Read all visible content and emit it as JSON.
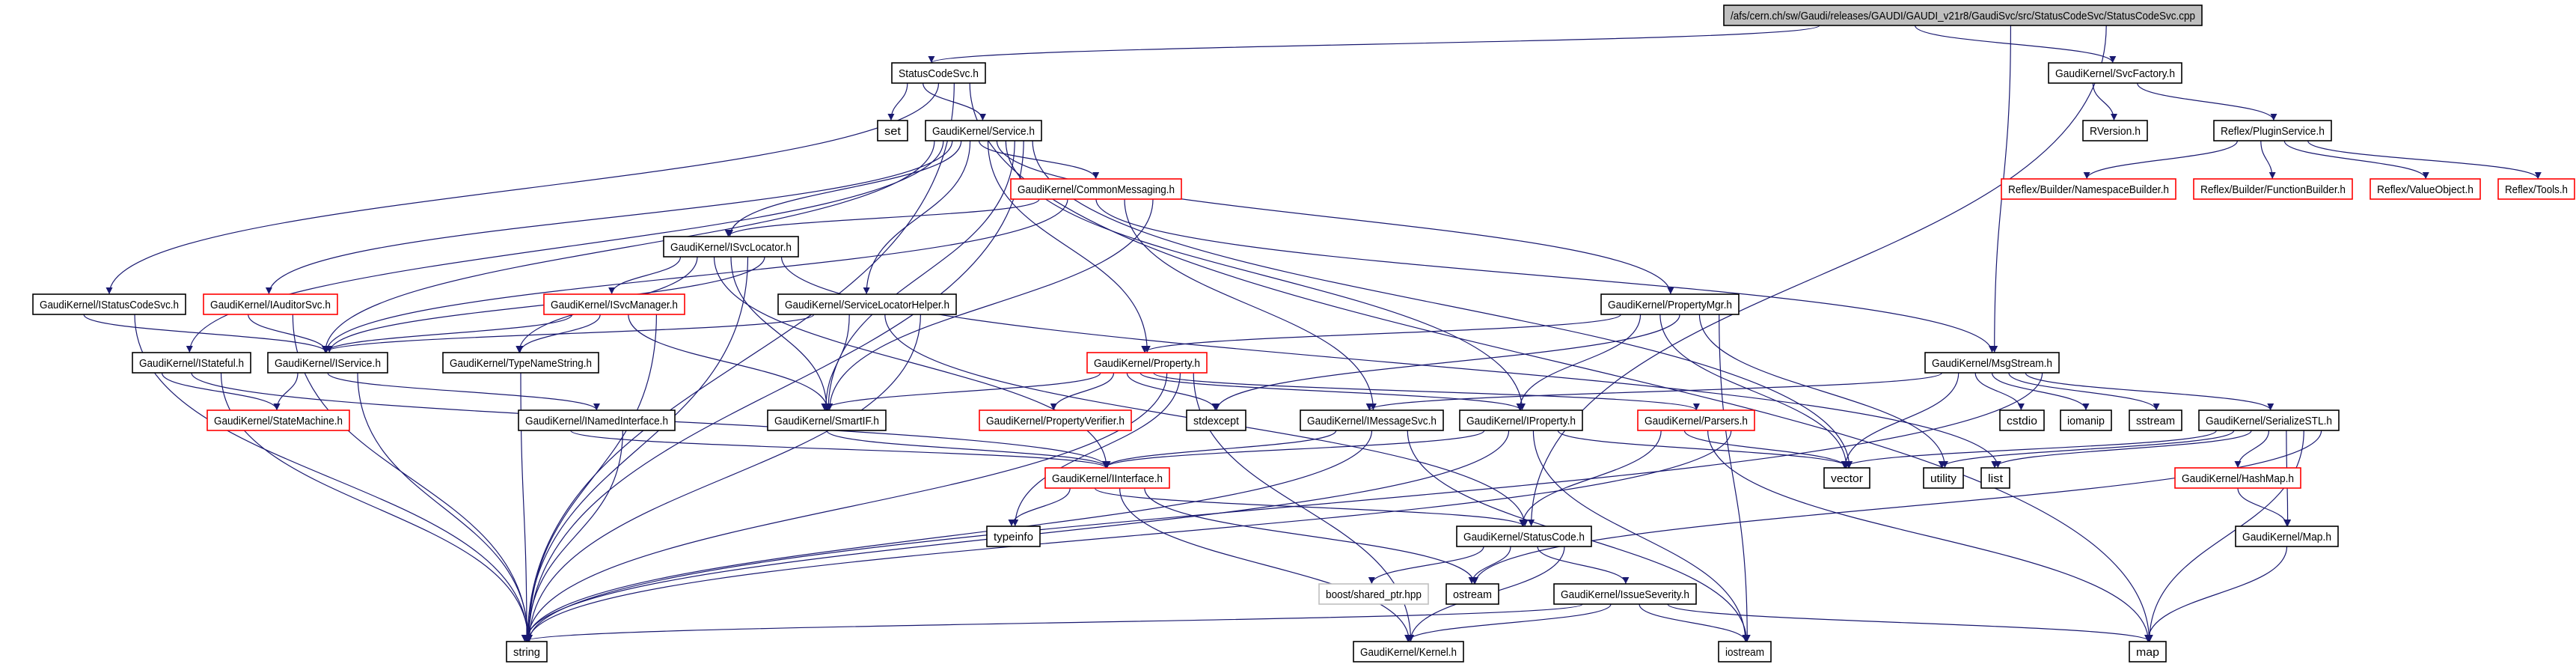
{
  "colors": {
    "edge": "#191970",
    "border": "#000000",
    "missing_border": "#ff0000",
    "external_border": "#bfbfbf",
    "root_fill": "#bfbfbf",
    "background": "#ffffff"
  },
  "nodes": [
    {
      "id": "root",
      "label": "/afs/cern.ch/sw/Gaudi/releases/GAUDI/GAUDI_v21r8/GaudiSvc/src/StatusCodeSvc/StatusCodeSvc.cpp",
      "style": "root"
    },
    {
      "id": "StatusCodeSvc",
      "label": "StatusCodeSvc.h",
      "style": "normal"
    },
    {
      "id": "SvcFactory",
      "label": "GaudiKernel/SvcFactory.h",
      "style": "normal"
    },
    {
      "id": "set",
      "label": "set",
      "style": "normal"
    },
    {
      "id": "Service",
      "label": "GaudiKernel/Service.h",
      "style": "normal"
    },
    {
      "id": "RVersion",
      "label": "RVersion.h",
      "style": "normal"
    },
    {
      "id": "PluginService",
      "label": "Reflex/PluginService.h",
      "style": "normal"
    },
    {
      "id": "CommonMessaging",
      "label": "GaudiKernel/CommonMessaging.h",
      "style": "missing"
    },
    {
      "id": "NamespaceBuilder",
      "label": "Reflex/Builder/NamespaceBuilder.h",
      "style": "missing"
    },
    {
      "id": "FunctionBuilder",
      "label": "Reflex/Builder/FunctionBuilder.h",
      "style": "missing"
    },
    {
      "id": "ValueObject",
      "label": "Reflex/ValueObject.h",
      "style": "missing"
    },
    {
      "id": "Tools",
      "label": "Reflex/Tools.h",
      "style": "missing"
    },
    {
      "id": "ISvcLocator",
      "label": "GaudiKernel/ISvcLocator.h",
      "style": "normal"
    },
    {
      "id": "IStatusCodeSvc",
      "label": "GaudiKernel/IStatusCodeSvc.h",
      "style": "normal"
    },
    {
      "id": "IAuditorSvc",
      "label": "GaudiKernel/IAuditorSvc.h",
      "style": "missing"
    },
    {
      "id": "ISvcManager",
      "label": "GaudiKernel/ISvcManager.h",
      "style": "missing"
    },
    {
      "id": "ServiceLocatorHelper",
      "label": "GaudiKernel/ServiceLocatorHelper.h",
      "style": "normal"
    },
    {
      "id": "PropertyMgr",
      "label": "GaudiKernel/PropertyMgr.h",
      "style": "normal"
    },
    {
      "id": "IStateful",
      "label": "GaudiKernel/IStateful.h",
      "style": "normal"
    },
    {
      "id": "IService",
      "label": "GaudiKernel/IService.h",
      "style": "normal"
    },
    {
      "id": "TypeNameString",
      "label": "GaudiKernel/TypeNameString.h",
      "style": "normal"
    },
    {
      "id": "Property",
      "label": "GaudiKernel/Property.h",
      "style": "missing"
    },
    {
      "id": "MsgStream",
      "label": "GaudiKernel/MsgStream.h",
      "style": "normal"
    },
    {
      "id": "StateMachine",
      "label": "GaudiKernel/StateMachine.h",
      "style": "missing"
    },
    {
      "id": "INamedInterface",
      "label": "GaudiKernel/INamedInterface.h",
      "style": "normal"
    },
    {
      "id": "SmartIF",
      "label": "GaudiKernel/SmartIF.h",
      "style": "normal"
    },
    {
      "id": "PropertyVerifier",
      "label": "GaudiKernel/PropertyVerifier.h",
      "style": "missing"
    },
    {
      "id": "stdexcept",
      "label": "stdexcept",
      "style": "normal"
    },
    {
      "id": "IMessageSvc",
      "label": "GaudiKernel/IMessageSvc.h",
      "style": "normal"
    },
    {
      "id": "IProperty",
      "label": "GaudiKernel/IProperty.h",
      "style": "normal"
    },
    {
      "id": "Parsers",
      "label": "GaudiKernel/Parsers.h",
      "style": "missing"
    },
    {
      "id": "cstdio",
      "label": "cstdio",
      "style": "normal"
    },
    {
      "id": "iomanip",
      "label": "iomanip",
      "style": "normal"
    },
    {
      "id": "sstream",
      "label": "sstream",
      "style": "normal"
    },
    {
      "id": "SerializeSTL",
      "label": "GaudiKernel/SerializeSTL.h",
      "style": "normal"
    },
    {
      "id": "IInterface",
      "label": "GaudiKernel/IInterface.h",
      "style": "missing"
    },
    {
      "id": "vector",
      "label": "vector",
      "style": "normal"
    },
    {
      "id": "utility",
      "label": "utility",
      "style": "normal"
    },
    {
      "id": "list",
      "label": "list",
      "style": "normal"
    },
    {
      "id": "HashMap",
      "label": "GaudiKernel/HashMap.h",
      "style": "missing"
    },
    {
      "id": "typeinfo",
      "label": "typeinfo",
      "style": "normal"
    },
    {
      "id": "StatusCode",
      "label": "GaudiKernel/StatusCode.h",
      "style": "normal"
    },
    {
      "id": "Map",
      "label": "GaudiKernel/Map.h",
      "style": "normal"
    },
    {
      "id": "boost",
      "label": "boost/shared_ptr.hpp",
      "style": "external"
    },
    {
      "id": "ostream",
      "label": "ostream",
      "style": "normal"
    },
    {
      "id": "IssueSeverity",
      "label": "GaudiKernel/IssueSeverity.h",
      "style": "normal"
    },
    {
      "id": "string",
      "label": "string",
      "style": "normal"
    },
    {
      "id": "Kernel",
      "label": "GaudiKernel/Kernel.h",
      "style": "normal"
    },
    {
      "id": "iostream",
      "label": "iostream",
      "style": "normal"
    },
    {
      "id": "map",
      "label": "map",
      "style": "normal"
    }
  ],
  "edges": [
    [
      "root",
      "StatusCodeSvc"
    ],
    [
      "root",
      "SvcFactory"
    ],
    [
      "root",
      "MsgStream"
    ],
    [
      "root",
      "StatusCode"
    ],
    [
      "StatusCodeSvc",
      "set"
    ],
    [
      "StatusCodeSvc",
      "Service"
    ],
    [
      "StatusCodeSvc",
      "IStatusCodeSvc"
    ],
    [
      "StatusCodeSvc",
      "string"
    ],
    [
      "StatusCodeSvc",
      "map"
    ],
    [
      "SvcFactory",
      "RVersion"
    ],
    [
      "SvcFactory",
      "PluginService"
    ],
    [
      "PluginService",
      "NamespaceBuilder"
    ],
    [
      "PluginService",
      "FunctionBuilder"
    ],
    [
      "PluginService",
      "ValueObject"
    ],
    [
      "PluginService",
      "Tools"
    ],
    [
      "Service",
      "IService"
    ],
    [
      "Service",
      "IStateful"
    ],
    [
      "Service",
      "IAuditorSvc"
    ],
    [
      "Service",
      "ISvcLocator"
    ],
    [
      "Service",
      "ServiceLocatorHelper"
    ],
    [
      "Service",
      "CommonMessaging"
    ],
    [
      "Service",
      "Property"
    ],
    [
      "Service",
      "PropertyMgr"
    ],
    [
      "Service",
      "IProperty"
    ],
    [
      "Service",
      "SmartIF"
    ],
    [
      "Service",
      "string"
    ],
    [
      "Service",
      "vector"
    ],
    [
      "CommonMessaging",
      "ISvcLocator"
    ],
    [
      "CommonMessaging",
      "IService"
    ],
    [
      "CommonMessaging",
      "MsgStream"
    ],
    [
      "CommonMessaging",
      "IMessageSvc"
    ],
    [
      "CommonMessaging",
      "SmartIF"
    ],
    [
      "ISvcLocator",
      "ISvcManager"
    ],
    [
      "ISvcLocator",
      "TypeNameString"
    ],
    [
      "ISvcLocator",
      "IInterface"
    ],
    [
      "ISvcLocator",
      "SmartIF"
    ],
    [
      "ISvcLocator",
      "string"
    ],
    [
      "ISvcLocator",
      "IService"
    ],
    [
      "ISvcLocator",
      "list"
    ],
    [
      "IStatusCodeSvc",
      "IService"
    ],
    [
      "IStatusCodeSvc",
      "string"
    ],
    [
      "IAuditorSvc",
      "IService"
    ],
    [
      "IAuditorSvc",
      "string"
    ],
    [
      "ISvcManager",
      "IService"
    ],
    [
      "ISvcManager",
      "TypeNameString"
    ],
    [
      "ISvcManager",
      "SmartIF"
    ],
    [
      "ISvcManager",
      "string"
    ],
    [
      "ServiceLocatorHelper",
      "IService"
    ],
    [
      "ServiceLocatorHelper",
      "SmartIF"
    ],
    [
      "ServiceLocatorHelper",
      "StatusCode"
    ],
    [
      "ServiceLocatorHelper",
      "string"
    ],
    [
      "PropertyMgr",
      "Property"
    ],
    [
      "PropertyMgr",
      "IProperty"
    ],
    [
      "PropertyMgr",
      "vector"
    ],
    [
      "PropertyMgr",
      "stdexcept"
    ],
    [
      "PropertyMgr",
      "utility"
    ],
    [
      "PropertyMgr",
      "iostream"
    ],
    [
      "IStateful",
      "StateMachine"
    ],
    [
      "IStateful",
      "IInterface"
    ],
    [
      "IStateful",
      "string"
    ],
    [
      "IService",
      "StateMachine"
    ],
    [
      "IService",
      "INamedInterface"
    ],
    [
      "IService",
      "string"
    ],
    [
      "TypeNameString",
      "string"
    ],
    [
      "Property",
      "SmartIF"
    ],
    [
      "Property",
      "PropertyVerifier"
    ],
    [
      "Property",
      "stdexcept"
    ],
    [
      "Property",
      "IProperty"
    ],
    [
      "Property",
      "Parsers"
    ],
    [
      "Property",
      "string"
    ],
    [
      "Property",
      "typeinfo"
    ],
    [
      "Property",
      "Kernel"
    ],
    [
      "MsgStream",
      "IMessageSvc"
    ],
    [
      "MsgStream",
      "vector"
    ],
    [
      "MsgStream",
      "cstdio"
    ],
    [
      "MsgStream",
      "iomanip"
    ],
    [
      "MsgStream",
      "sstream"
    ],
    [
      "MsgStream",
      "SerializeSTL"
    ],
    [
      "MsgStream",
      "string"
    ],
    [
      "INamedInterface",
      "IInterface"
    ],
    [
      "INamedInterface",
      "string"
    ],
    [
      "SmartIF",
      "IInterface"
    ],
    [
      "IMessageSvc",
      "IInterface"
    ],
    [
      "IMessageSvc",
      "string"
    ],
    [
      "IMessageSvc",
      "iostream"
    ],
    [
      "IProperty",
      "IInterface"
    ],
    [
      "IProperty",
      "string"
    ],
    [
      "IProperty",
      "iostream"
    ],
    [
      "IProperty",
      "vector"
    ],
    [
      "Parsers",
      "StatusCode"
    ],
    [
      "Parsers",
      "vector"
    ],
    [
      "Parsers",
      "map"
    ],
    [
      "Parsers",
      "string"
    ],
    [
      "SerializeSTL",
      "vector"
    ],
    [
      "SerializeSTL",
      "utility"
    ],
    [
      "SerializeSTL",
      "list"
    ],
    [
      "SerializeSTL",
      "HashMap"
    ],
    [
      "SerializeSTL",
      "Map"
    ],
    [
      "SerializeSTL",
      "map"
    ],
    [
      "SerializeSTL",
      "ostream"
    ],
    [
      "HashMap",
      "Map"
    ],
    [
      "Map",
      "map"
    ],
    [
      "IInterface",
      "typeinfo"
    ],
    [
      "IInterface",
      "StatusCode"
    ],
    [
      "IInterface",
      "Kernel"
    ],
    [
      "IInterface",
      "ostream"
    ],
    [
      "StatusCode",
      "boost"
    ],
    [
      "StatusCode",
      "ostream"
    ],
    [
      "StatusCode",
      "IssueSeverity"
    ],
    [
      "StatusCode",
      "Kernel"
    ],
    [
      "IssueSeverity",
      "string"
    ],
    [
      "IssueSeverity",
      "Kernel"
    ],
    [
      "IssueSeverity",
      "iostream"
    ],
    [
      "IssueSeverity",
      "map"
    ]
  ]
}
